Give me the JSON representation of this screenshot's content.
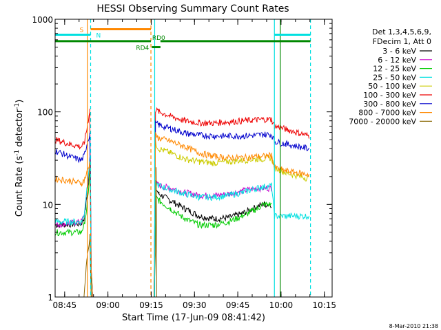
{
  "chart_data": {
    "type": "line",
    "title": "HESSI Observing Summary Count Rates",
    "xlabel": "Start Time (17-Jun-09 08:41:42)",
    "ylabel_main": "Count Rate (s",
    "ylabel_sup1": "-1",
    "ylabel_mid": " detector",
    "ylabel_sup2": "-1",
    "ylabel_end": ")",
    "yscale": "log",
    "ylim": [
      1,
      1000
    ],
    "xlim_minutes_after_0841_42": [
      0,
      96
    ],
    "x_ticks": [
      {
        "label": "08:45",
        "t": 3.3
      },
      {
        "label": "09:00",
        "t": 18.3
      },
      {
        "label": "09:15",
        "t": 33.3
      },
      {
        "label": "09:30",
        "t": 48.3
      },
      {
        "label": "09:45",
        "t": 63.3
      },
      {
        "label": "10:00",
        "t": 78.3
      },
      {
        "label": "10:15",
        "t": 93.3
      }
    ],
    "y_ticks": [
      {
        "label": "1",
        "v": 1
      },
      {
        "label": "10",
        "v": 10
      },
      {
        "label": "100",
        "v": 100
      },
      {
        "label": "1000",
        "v": 1000
      }
    ],
    "legend": {
      "placement": "top-right-outside",
      "header1": "Det 1,3,4,5,6,9,",
      "header2": "FDecim 1, Att 0"
    },
    "series": [
      {
        "name": "3 - 6 keV",
        "color": "#000000",
        "points": [
          [
            0,
            6
          ],
          [
            9,
            6.2
          ],
          [
            10,
            7
          ],
          [
            11,
            12
          ],
          [
            12,
            25
          ],
          [
            12.2,
            30
          ],
          [
            12.5,
            2
          ],
          [
            13,
            1
          ],
          [
            34.3,
            1
          ],
          [
            34.8,
            15
          ],
          [
            36,
            13
          ],
          [
            40,
            11
          ],
          [
            45,
            9
          ],
          [
            50,
            7.5
          ],
          [
            55,
            7
          ],
          [
            60,
            7.2
          ],
          [
            65,
            8
          ],
          [
            70,
            9.5
          ],
          [
            72,
            10
          ],
          [
            75,
            10
          ]
        ]
      },
      {
        "name": "6 - 12 keV",
        "color": "#cc00cc",
        "points": [
          [
            0,
            6
          ],
          [
            9,
            6.5
          ],
          [
            10,
            7.5
          ],
          [
            11,
            13
          ],
          [
            12,
            28
          ],
          [
            12.2,
            32
          ],
          [
            12.5,
            2
          ],
          [
            13,
            1
          ],
          [
            34.3,
            1
          ],
          [
            34.8,
            17
          ],
          [
            36,
            16
          ],
          [
            40,
            15
          ],
          [
            45,
            13.5
          ],
          [
            50,
            12.5
          ],
          [
            55,
            12.5
          ],
          [
            60,
            13
          ],
          [
            65,
            14
          ],
          [
            70,
            15
          ],
          [
            72,
            15
          ],
          [
            75,
            15
          ]
        ]
      },
      {
        "name": "12 - 25 keV",
        "color": "#00cc00",
        "points": [
          [
            0,
            5
          ],
          [
            9,
            5
          ],
          [
            10,
            6
          ],
          [
            11,
            9
          ],
          [
            12,
            22
          ],
          [
            12.2,
            26
          ],
          [
            12.5,
            1
          ],
          [
            34.3,
            1
          ],
          [
            34.8,
            12
          ],
          [
            36,
            11
          ],
          [
            40,
            9
          ],
          [
            45,
            7
          ],
          [
            50,
            6
          ],
          [
            55,
            6
          ],
          [
            60,
            6.5
          ],
          [
            65,
            7.5
          ],
          [
            70,
            9
          ],
          [
            72,
            10
          ],
          [
            75,
            10
          ]
        ]
      },
      {
        "name": "25 - 50 keV",
        "color": "#00e0e0",
        "points": [
          [
            0,
            6.5
          ],
          [
            9,
            6.5
          ],
          [
            10,
            7.5
          ],
          [
            11,
            15
          ],
          [
            12,
            30
          ],
          [
            12.2,
            34
          ],
          [
            12.5,
            2
          ],
          [
            13,
            1
          ],
          [
            34.3,
            1
          ],
          [
            34.8,
            17
          ],
          [
            36,
            16
          ],
          [
            40,
            14.5
          ],
          [
            45,
            13
          ],
          [
            50,
            12
          ],
          [
            55,
            12
          ],
          [
            60,
            12.5
          ],
          [
            65,
            13.5
          ],
          [
            70,
            15
          ],
          [
            72,
            15.5
          ],
          [
            75,
            16
          ],
          [
            76,
            7.5
          ],
          [
            80,
            7.5
          ],
          [
            88,
            7.5
          ]
        ]
      },
      {
        "name": "50 - 100 keV",
        "color": "#cccc00",
        "points": [
          [
            34.8,
            46
          ],
          [
            36,
            40
          ],
          [
            40,
            36
          ],
          [
            45,
            31
          ],
          [
            50,
            29
          ],
          [
            55,
            28
          ],
          [
            60,
            29
          ],
          [
            65,
            30
          ],
          [
            70,
            31
          ],
          [
            72,
            31
          ],
          [
            75,
            32
          ],
          [
            76,
            25
          ],
          [
            80,
            22
          ],
          [
            88,
            19
          ]
        ]
      },
      {
        "name": "100 - 300 keV",
        "color": "#ee0000",
        "points": [
          [
            0,
            50
          ],
          [
            5,
            45
          ],
          [
            9,
            42
          ],
          [
            10,
            45
          ],
          [
            11,
            65
          ],
          [
            12,
            105
          ],
          [
            12.5,
            2
          ],
          [
            13,
            1
          ],
          [
            34.3,
            1
          ],
          [
            34.8,
            105
          ],
          [
            36,
            100
          ],
          [
            40,
            90
          ],
          [
            45,
            80
          ],
          [
            50,
            76
          ],
          [
            55,
            76
          ],
          [
            60,
            78
          ],
          [
            65,
            80
          ],
          [
            70,
            82
          ],
          [
            72,
            83
          ],
          [
            75,
            83
          ],
          [
            76,
            70
          ],
          [
            80,
            65
          ],
          [
            88,
            55
          ]
        ]
      },
      {
        "name": "300 - 800 keV",
        "color": "#0000cc",
        "points": [
          [
            0,
            38
          ],
          [
            5,
            33
          ],
          [
            9,
            30
          ],
          [
            10,
            33
          ],
          [
            11,
            45
          ],
          [
            12,
            58
          ],
          [
            12.5,
            2
          ],
          [
            13,
            1
          ],
          [
            34.3,
            1
          ],
          [
            34.8,
            75
          ],
          [
            36,
            72
          ],
          [
            40,
            66
          ],
          [
            45,
            59
          ],
          [
            50,
            56
          ],
          [
            55,
            55
          ],
          [
            60,
            55
          ],
          [
            65,
            55
          ],
          [
            70,
            56
          ],
          [
            72,
            57
          ],
          [
            75,
            57
          ],
          [
            76,
            48
          ],
          [
            80,
            45
          ],
          [
            88,
            40
          ]
        ]
      },
      {
        "name": "800 - 7000 keV",
        "color": "#ff8800",
        "points": [
          [
            0,
            19
          ],
          [
            5,
            18
          ],
          [
            9,
            17
          ],
          [
            10,
            18
          ],
          [
            11,
            22
          ],
          [
            12,
            28
          ],
          [
            12.5,
            2
          ],
          [
            13,
            1
          ],
          [
            34.3,
            1
          ],
          [
            34.8,
            55
          ],
          [
            36,
            52
          ],
          [
            40,
            48
          ],
          [
            45,
            42
          ],
          [
            50,
            36
          ],
          [
            55,
            33
          ],
          [
            60,
            32
          ],
          [
            65,
            32
          ],
          [
            70,
            33
          ],
          [
            72,
            33
          ],
          [
            75,
            34
          ],
          [
            76,
            25
          ],
          [
            80,
            23
          ],
          [
            88,
            21
          ]
        ]
      },
      {
        "name": "7000 - 20000 keV",
        "color": "#886600",
        "points": [
          [
            10,
            1
          ],
          [
            11,
            2.5
          ],
          [
            12,
            4.5
          ],
          [
            12.5,
            1
          ],
          [
            34.3,
            1
          ],
          [
            34.8,
            3
          ],
          [
            35,
            25
          ],
          [
            35.2,
            1
          ]
        ]
      }
    ],
    "vertical_lines": [
      {
        "t": 11.2,
        "color": "#ff8800",
        "style": "solid"
      },
      {
        "t": 12.3,
        "color": "#00e0e0",
        "style": "dashed"
      },
      {
        "t": 33.2,
        "color": "#ff8800",
        "style": "dashed"
      },
      {
        "t": 34.5,
        "color": "#00e0e0",
        "style": "solid"
      },
      {
        "t": 76.0,
        "color": "#00e0e0",
        "style": "solid"
      },
      {
        "t": 78.0,
        "color": "#008800",
        "style": "solid"
      },
      {
        "t": 88.5,
        "color": "#00e0e0",
        "style": "dashed"
      }
    ],
    "bars": [
      {
        "t0": 12.3,
        "t1": 33.2,
        "v": 780,
        "color": "#ff8800",
        "label": "S"
      },
      {
        "t0": 0,
        "t1": 12.3,
        "v": 680,
        "color": "#00e0e0",
        "label": "N"
      },
      {
        "t0": 76.0,
        "t1": 88.5,
        "v": 680,
        "color": "#00e0e0",
        "label": ""
      },
      {
        "t0": 0,
        "t1": 33.2,
        "v": 580,
        "color": "#008800",
        "label": ""
      },
      {
        "t0": 36.5,
        "t1": 88.5,
        "v": 580,
        "color": "#008800",
        "label": "RD0"
      },
      {
        "t0": 33.5,
        "t1": 36.5,
        "v": 500,
        "color": "#008800",
        "label": "RD4"
      }
    ],
    "timestamp": "8-Mar-2010 21:38"
  }
}
